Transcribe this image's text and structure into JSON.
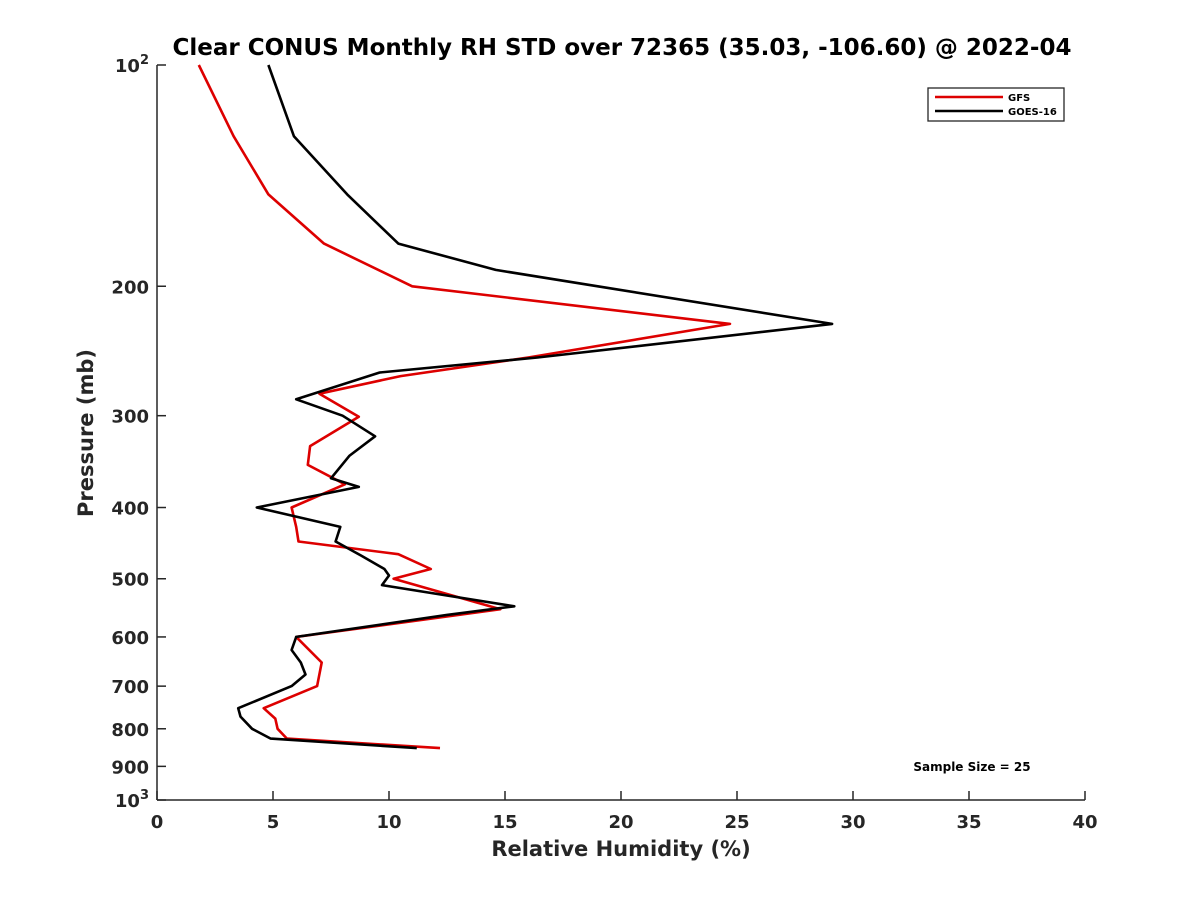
{
  "chart_data": {
    "type": "line",
    "title": "Clear CONUS Monthly RH STD over 72365 (35.03, -106.60) @ 2022-04",
    "xlabel": "Relative Humidity (%)",
    "ylabel": "Pressure (mb)",
    "xlim": [
      0,
      40
    ],
    "ylim": [
      100,
      1000
    ],
    "y_scale": "log",
    "y_reversed": true,
    "grid": false,
    "legend_position": "top-right",
    "x_ticks": [
      "0",
      "5",
      "10",
      "15",
      "20",
      "25",
      "30",
      "35",
      "40"
    ],
    "y_ticks": [
      {
        "value": 100,
        "base": "10",
        "exp": "2"
      },
      {
        "value": 200,
        "label": "200"
      },
      {
        "value": 300,
        "label": "300"
      },
      {
        "value": 400,
        "label": "400"
      },
      {
        "value": 500,
        "label": "500"
      },
      {
        "value": 600,
        "label": "600"
      },
      {
        "value": 700,
        "label": "700"
      },
      {
        "value": 800,
        "label": "800"
      },
      {
        "value": 900,
        "label": "900"
      },
      {
        "value": 1000,
        "base": "10",
        "exp": "3"
      }
    ],
    "annotation": "Sample Size = 25",
    "series": [
      {
        "name": "GFS",
        "color": "#dd0000",
        "points": [
          [
            1.8,
            100
          ],
          [
            3.3,
            125
          ],
          [
            4.8,
            150
          ],
          [
            7.2,
            175
          ],
          [
            11.0,
            200
          ],
          [
            24.7,
            225
          ],
          [
            16.0,
            250
          ],
          [
            10.5,
            265
          ],
          [
            7.0,
            280
          ],
          [
            8.7,
            301
          ],
          [
            6.6,
            330
          ],
          [
            6.5,
            350
          ],
          [
            8.1,
            372
          ],
          [
            5.8,
            400
          ],
          [
            6.0,
            425
          ],
          [
            6.1,
            445
          ],
          [
            10.4,
            463
          ],
          [
            11.8,
            485
          ],
          [
            10.2,
            500
          ],
          [
            14.8,
            550
          ],
          [
            6.0,
            600
          ],
          [
            7.1,
            650
          ],
          [
            6.9,
            700
          ],
          [
            4.6,
            750
          ],
          [
            5.1,
            775
          ],
          [
            5.2,
            800
          ],
          [
            5.6,
            825
          ],
          [
            12.2,
            850
          ]
        ]
      },
      {
        "name": "GOES-16",
        "color": "#000000",
        "points": [
          [
            4.8,
            100
          ],
          [
            5.9,
            125
          ],
          [
            8.2,
            150
          ],
          [
            10.4,
            175
          ],
          [
            14.6,
            190
          ],
          [
            19.0,
            200
          ],
          [
            29.1,
            225
          ],
          [
            16.4,
            250
          ],
          [
            9.6,
            262
          ],
          [
            6.0,
            285
          ],
          [
            8.0,
            300
          ],
          [
            9.4,
            320
          ],
          [
            8.3,
            340
          ],
          [
            7.5,
            365
          ],
          [
            8.7,
            375
          ],
          [
            4.3,
            400
          ],
          [
            7.9,
            425
          ],
          [
            7.7,
            445
          ],
          [
            8.8,
            465
          ],
          [
            9.8,
            485
          ],
          [
            10.0,
            495
          ],
          [
            9.7,
            510
          ],
          [
            15.4,
            545
          ],
          [
            12.5,
            560
          ],
          [
            6.0,
            600
          ],
          [
            5.8,
            625
          ],
          [
            6.2,
            650
          ],
          [
            6.4,
            675
          ],
          [
            5.8,
            700
          ],
          [
            3.5,
            750
          ],
          [
            3.6,
            770
          ],
          [
            4.1,
            800
          ],
          [
            4.9,
            825
          ],
          [
            11.2,
            850
          ]
        ]
      }
    ]
  }
}
